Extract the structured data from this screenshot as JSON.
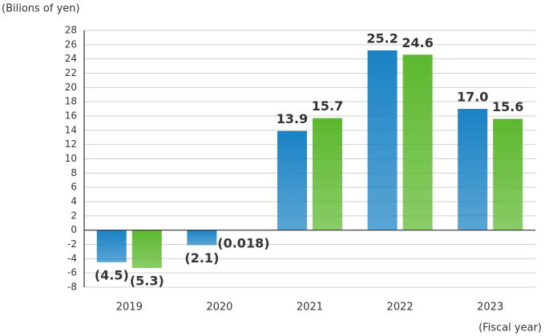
{
  "chart_data": {
    "type": "bar",
    "y_label": "(Bilions of yen)",
    "x_label": "(Fiscal year)",
    "categories": [
      "2019",
      "2020",
      "2021",
      "2022",
      "2023"
    ],
    "series": [
      {
        "color": "#1a82c4",
        "values": [
          -4.5,
          -2.1,
          13.9,
          25.2,
          17.0
        ],
        "value_labels": [
          "(4.5)",
          "(2.1)",
          "13.9",
          "25.2",
          "17.0"
        ]
      },
      {
        "color": "#5cb82e",
        "values": [
          -5.3,
          -0.018,
          15.7,
          24.6,
          15.6
        ],
        "value_labels": [
          "(5.3)",
          "(0.018)",
          "15.7",
          "24.6",
          "15.6"
        ]
      }
    ],
    "ylim": [
      -8,
      28
    ],
    "yticks": [
      -8,
      -6,
      -4,
      -2,
      0,
      2,
      4,
      6,
      8,
      10,
      12,
      14,
      16,
      18,
      20,
      22,
      24,
      26,
      28
    ],
    "grid": true
  }
}
